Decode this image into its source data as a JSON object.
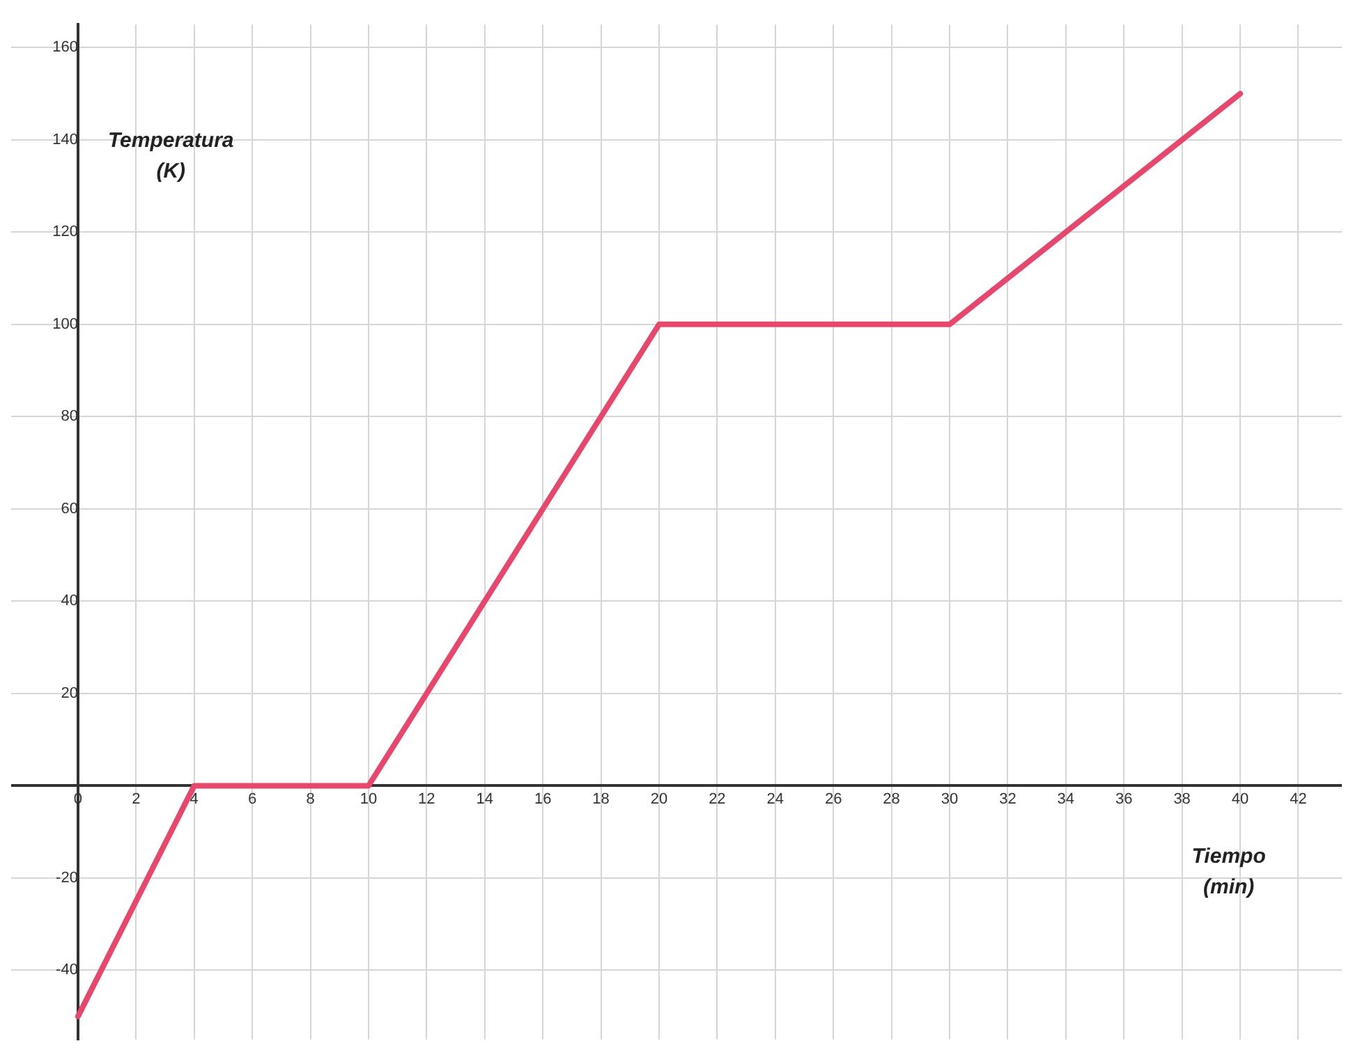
{
  "chart_data": {
    "type": "line",
    "xlabel": "Tiempo (min)",
    "ylabel": "Temperatura (K)",
    "x": [
      0,
      4,
      10,
      20,
      30,
      40
    ],
    "series": [
      {
        "color": "#e8476b",
        "values": [
          -50,
          0,
          0,
          100,
          100,
          150
        ]
      }
    ],
    "xlim": [
      -2.3,
      43.5
    ],
    "ylim": [
      -55,
      165
    ],
    "xticks": [
      0,
      2,
      4,
      6,
      8,
      10,
      12,
      14,
      16,
      18,
      20,
      22,
      24,
      26,
      28,
      30,
      32,
      34,
      36,
      38,
      40,
      42
    ],
    "yticks": [
      -40,
      -20,
      20,
      40,
      60,
      80,
      100,
      120,
      140,
      160
    ],
    "grid": true,
    "legend": false,
    "marker": "none",
    "line_style": "solid"
  }
}
